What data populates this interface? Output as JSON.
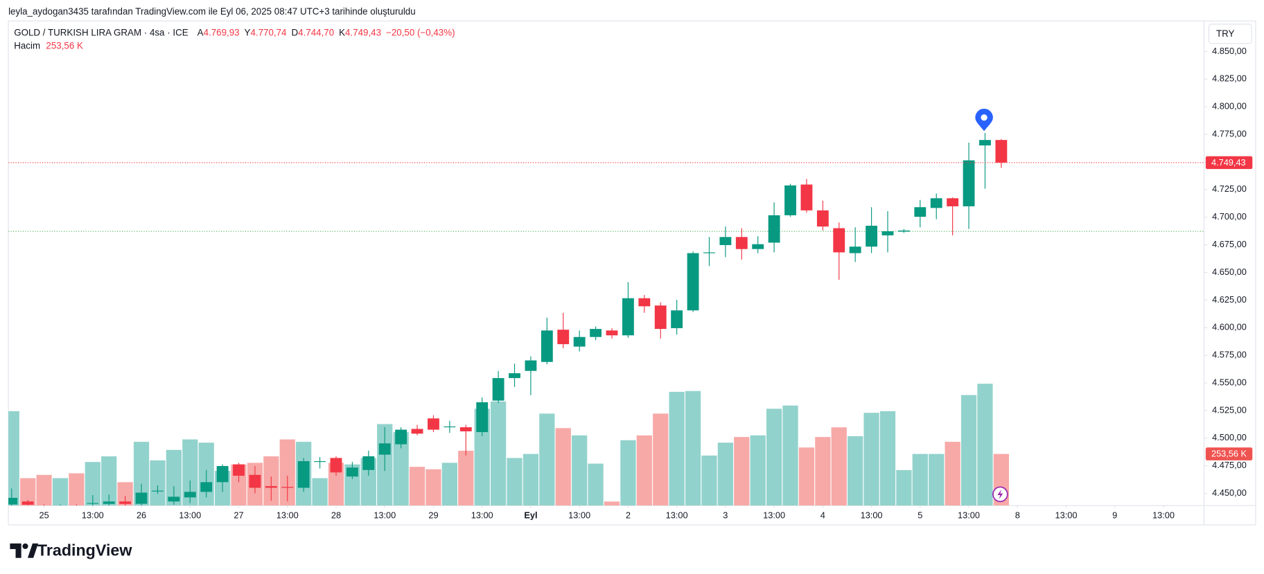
{
  "page": {
    "caption": "leyla_aydogan3435 tarafından TradingView.com ile Eyl 06, 2025 08:47 UTC+3 tarihinde oluşturuldu",
    "brand": "TradingView",
    "currency": "TRY"
  },
  "chart_data": {
    "type": "candlestick",
    "legend": {
      "symbol": "GOLD / TURKISH LIRA GRAM · 4sa · ICE",
      "ohlc": [
        {
          "key": "A",
          "value": "4.769,93"
        },
        {
          "key": "Y",
          "value": "4.770,74"
        },
        {
          "key": "D",
          "value": "4.744,70"
        },
        {
          "key": "K",
          "value": "4.749,43"
        }
      ],
      "change": "−20,50 (−0,43%)",
      "volume_name": "Hacim",
      "volume": "253,56 K"
    },
    "open": [
      4440,
      4442.7,
      4437,
      4434,
      4438,
      4440.6,
      4440.5,
      4442.7,
      4440.6,
      4452.2,
      4442.7,
      4446.4,
      4451.4,
      4460.2,
      4476.3,
      4466.8,
      4456.6,
      4455.9,
      4455.1,
      4478.5,
      4482.1,
      4465.3,
      4471.2,
      4485.1,
      4494.5,
      4508.4,
      4517.9,
      4509.9,
      4509.9,
      4505.5,
      4534,
      4554.4,
      4560.9,
      4569,
      4598.2,
      4582.9,
      4591.6,
      4597.5,
      4593.1,
      4626.7,
      4620.1,
      4599.6,
      4615.7,
      4667.5,
      4674.8,
      4682.1,
      4671.2,
      4677,
      4701.8,
      4729.6,
      4706.2,
      4690.1,
      4667.5,
      4673.4,
      4683.6,
      4687,
      4700.4,
      4708.4,
      4717.2,
      4709.9,
      4765,
      4769.93
    ],
    "high": [
      4454.4,
      4444.2,
      4440,
      4440,
      4440,
      4448.5,
      4449,
      4447.8,
      4458.8,
      4457.3,
      4456.5,
      4461.7,
      4471.2,
      4476.3,
      4477.7,
      4474.8,
      4465.3,
      4466,
      4482.1,
      4482.9,
      4483.6,
      4478.5,
      4488.7,
      4509.9,
      4509.9,
      4512.1,
      4520.8,
      4515.7,
      4512.1,
      4536.9,
      4560.9,
      4567.5,
      4574.1,
      4609.1,
      4613.5,
      4597.5,
      4601.1,
      4599.6,
      4641.2,
      4629.6,
      4623,
      4625.2,
      4669,
      4682.1,
      4691.6,
      4690.1,
      4682.8,
      4713.5,
      4730.3,
      4734.7,
      4715,
      4695.3,
      4690.9,
      4709.1,
      4705.5,
      4689.4,
      4715.7,
      4721.5,
      4717.9,
      4767.5,
      4776.3,
      4770.74
    ],
    "low": [
      4439,
      4439,
      4432,
      4430,
      4433,
      4439,
      4439,
      4439,
      4439,
      4449.6,
      4439.8,
      4441.3,
      4446.4,
      4451.4,
      4460.2,
      4450,
      4443.4,
      4442.7,
      4451.4,
      4472.6,
      4466,
      4463.1,
      4466,
      4470.4,
      4490.9,
      4502.6,
      4505.5,
      4504.8,
      4484.3,
      4501.8,
      4531.8,
      4546.4,
      4539,
      4566.8,
      4581.4,
      4578.5,
      4588.7,
      4590.2,
      4590.9,
      4613.5,
      4590.2,
      4593.8,
      4614.2,
      4655.8,
      4663.9,
      4661.7,
      4667.5,
      4668.2,
      4700.4,
      4704,
      4688,
      4643.4,
      4659.5,
      4667.5,
      4668.2,
      4685.8,
      4690.9,
      4698.2,
      4683.6,
      4689.4,
      4725.9,
      4744.7
    ],
    "close": [
      4446,
      4439.8,
      4435,
      4438,
      4437,
      4441.3,
      4442.7,
      4440.5,
      4450.7,
      4452.5,
      4447,
      4451.4,
      4460.2,
      4474.8,
      4466,
      4455.1,
      4455.1,
      4455.1,
      4479.2,
      4479.2,
      4469,
      4473.4,
      4483.6,
      4495.3,
      4507.7,
      4504.1,
      4507.7,
      4510.6,
      4506.2,
      4532.5,
      4554.4,
      4558.8,
      4570.4,
      4597.5,
      4585.1,
      4591.6,
      4598.9,
      4593.1,
      4626.7,
      4619.4,
      4598.9,
      4615.7,
      4667.5,
      4668.2,
      4682.1,
      4671.2,
      4675.6,
      4701.8,
      4728.8,
      4706.2,
      4691.6,
      4668.2,
      4673.4,
      4692.3,
      4687.3,
      4688,
      4709.1,
      4717.2,
      4709.9,
      4751.5,
      4769.93,
      4749.43
    ],
    "volume": [
      463.5,
      134.7,
      150.6,
      134.7,
      158.5,
      214,
      241.7,
      114.9,
      313,
      221.9,
      273.4,
      324.9,
      309,
      170.4,
      202.1,
      210,
      241.7,
      324.9,
      313,
      134.7,
      210,
      202.1,
      233.8,
      400.2,
      360.5,
      190.2,
      178.3,
      210,
      269.4,
      475.4,
      511.1,
      233.8,
      253.6,
      451.7,
      380.4,
      344.7,
      206,
      19.8,
      320.9,
      344.7,
      451.7,
      558.6,
      562.6,
      245.6,
      309,
      336.8,
      344.7,
      475.4,
      491.3,
      285.3,
      336.8,
      384.3,
      340.7,
      455.6,
      463.5,
      174.3,
      253.6,
      253.6,
      313,
      542.8,
      598.3,
      253.56
    ],
    "up_color": "#089981",
    "down_color": "#f23645",
    "volume_up_color": "#92d2cc",
    "volume_down_color": "#f7a9a7",
    "last_price_label": "4.749,43",
    "last_volume_label": "253,56 K",
    "session_line": 4687.2,
    "session_line_color": "#4caf50",
    "ylim": [
      4439,
      4877.7
    ],
    "volume_lim": [
      0,
      2380
    ],
    "xlim": [
      -0.2,
      73.5
    ],
    "yticks": [
      {
        "value": 4450,
        "label": "4.450,00"
      },
      {
        "value": 4475,
        "label": "4.475,00"
      },
      {
        "value": 4500,
        "label": "4.500,00"
      },
      {
        "value": 4525,
        "label": "4.525,00"
      },
      {
        "value": 4550,
        "label": "4.550,00"
      },
      {
        "value": 4575,
        "label": "4.575,00"
      },
      {
        "value": 4600,
        "label": "4.600,00"
      },
      {
        "value": 4625,
        "label": "4.625,00"
      },
      {
        "value": 4650,
        "label": "4.650,00"
      },
      {
        "value": 4675,
        "label": "4.675,00"
      },
      {
        "value": 4700,
        "label": "4.700,00"
      },
      {
        "value": 4725,
        "label": "4.725,00"
      },
      {
        "value": 4750,
        "label": "4.750,00"
      },
      {
        "value": 4775,
        "label": "4.775,00"
      },
      {
        "value": 4800,
        "label": "4.800,00"
      },
      {
        "value": 4825,
        "label": "4.825,00"
      },
      {
        "value": 4850,
        "label": "4.850,00"
      }
    ],
    "xticks": [
      {
        "value": 2,
        "label": "25"
      },
      {
        "value": 5,
        "label": "13:00"
      },
      {
        "value": 8,
        "label": "26"
      },
      {
        "value": 11,
        "label": "13:00"
      },
      {
        "value": 14,
        "label": "27"
      },
      {
        "value": 17,
        "label": "13:00"
      },
      {
        "value": 20,
        "label": "28"
      },
      {
        "value": 23,
        "label": "13:00"
      },
      {
        "value": 26,
        "label": "29"
      },
      {
        "value": 29,
        "label": "13:00"
      },
      {
        "value": 32,
        "label": "Eyl",
        "bold": true
      },
      {
        "value": 35,
        "label": "13:00"
      },
      {
        "value": 38,
        "label": "2"
      },
      {
        "value": 41,
        "label": "13:00"
      },
      {
        "value": 44,
        "label": "3"
      },
      {
        "value": 47,
        "label": "13:00"
      },
      {
        "value": 50,
        "label": "4"
      },
      {
        "value": 53,
        "label": "13:00"
      },
      {
        "value": 56,
        "label": "5"
      },
      {
        "value": 59,
        "label": "13:00"
      },
      {
        "value": 62,
        "label": "8"
      },
      {
        "value": 65,
        "label": "13:00"
      },
      {
        "value": 68,
        "label": "9"
      },
      {
        "value": 71,
        "label": "13:00"
      }
    ]
  }
}
